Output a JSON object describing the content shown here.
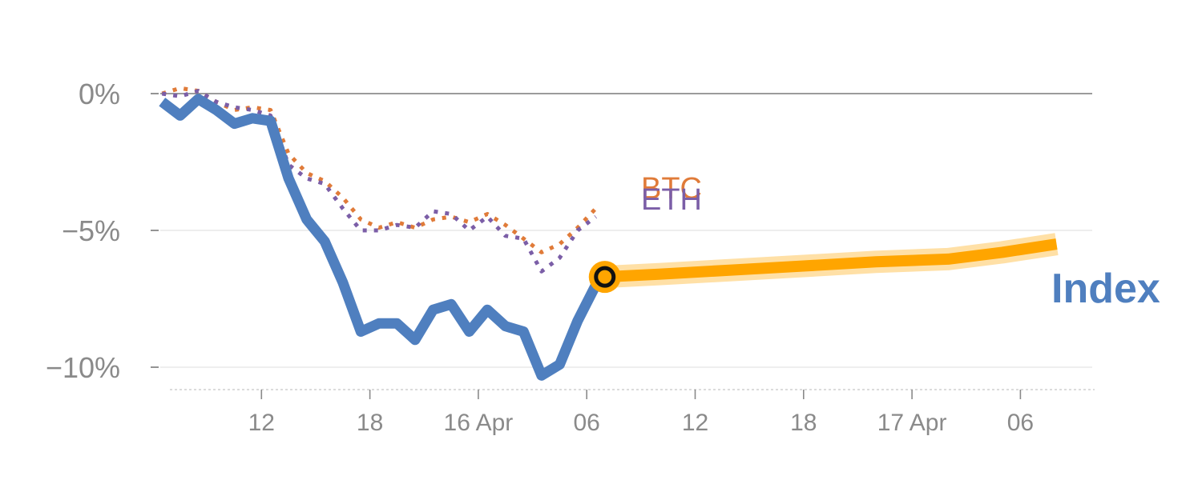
{
  "chart_data": {
    "type": "line",
    "ylim": [
      -11,
      1
    ],
    "y_ticks": [
      {
        "value": 0,
        "label": "0%"
      },
      {
        "value": -5,
        "label": "−5%"
      },
      {
        "value": -10,
        "label": "−10%"
      }
    ],
    "x_ticks": [
      {
        "hour": 12,
        "label": "12"
      },
      {
        "hour": 18,
        "label": "18"
      },
      {
        "hour": 24,
        "label": "16 Apr"
      },
      {
        "hour": 30,
        "label": "06"
      },
      {
        "hour": 36,
        "label": "12"
      },
      {
        "hour": 42,
        "label": "18"
      },
      {
        "hour": 48,
        "label": "17 Apr"
      },
      {
        "hour": 54,
        "label": "06"
      }
    ],
    "xlim": [
      6,
      57
    ],
    "series": [
      {
        "name": "BTC",
        "color": "#e07b39",
        "style": "dotted",
        "points": [
          [
            6.5,
            0.0
          ],
          [
            7.5,
            0.2
          ],
          [
            8.5,
            0.1
          ],
          [
            9.5,
            -0.3
          ],
          [
            10.5,
            -0.6
          ],
          [
            11.5,
            -0.5
          ],
          [
            12.5,
            -0.6
          ],
          [
            13.5,
            -2.2
          ],
          [
            14.5,
            -2.9
          ],
          [
            15.5,
            -3.2
          ],
          [
            16.5,
            -3.8
          ],
          [
            17.5,
            -4.6
          ],
          [
            18.5,
            -4.9
          ],
          [
            19.5,
            -4.7
          ],
          [
            20.5,
            -4.9
          ],
          [
            21.5,
            -4.6
          ],
          [
            22.5,
            -4.5
          ],
          [
            23.5,
            -4.7
          ],
          [
            24.5,
            -4.4
          ],
          [
            25.5,
            -4.8
          ],
          [
            26.5,
            -5.3
          ],
          [
            27.5,
            -5.8
          ],
          [
            28.5,
            -5.5
          ],
          [
            29.5,
            -4.9
          ],
          [
            30.5,
            -4.2
          ]
        ]
      },
      {
        "name": "ETH",
        "color": "#7b5ea7",
        "style": "dotted",
        "points": [
          [
            6.5,
            0.0
          ],
          [
            7.5,
            -0.1
          ],
          [
            8.5,
            0.1
          ],
          [
            9.5,
            -0.3
          ],
          [
            10.5,
            -0.5
          ],
          [
            11.5,
            -0.6
          ],
          [
            12.5,
            -0.8
          ],
          [
            13.5,
            -2.6
          ],
          [
            14.5,
            -3.1
          ],
          [
            15.5,
            -3.3
          ],
          [
            16.5,
            -4.2
          ],
          [
            17.5,
            -5.0
          ],
          [
            18.5,
            -5.0
          ],
          [
            19.5,
            -4.8
          ],
          [
            20.5,
            -4.9
          ],
          [
            21.5,
            -4.3
          ],
          [
            22.5,
            -4.4
          ],
          [
            23.5,
            -5.0
          ],
          [
            24.5,
            -4.5
          ],
          [
            25.5,
            -5.2
          ],
          [
            26.5,
            -5.3
          ],
          [
            27.5,
            -6.5
          ],
          [
            28.5,
            -6.0
          ],
          [
            29.5,
            -5.0
          ],
          [
            30.5,
            -4.5
          ]
        ]
      },
      {
        "name": "Index",
        "color": "#4f7fbf",
        "style": "solid",
        "points": [
          [
            6.5,
            -0.3
          ],
          [
            7.5,
            -0.8
          ],
          [
            8.5,
            -0.2
          ],
          [
            9.5,
            -0.6
          ],
          [
            10.5,
            -1.1
          ],
          [
            11.5,
            -0.9
          ],
          [
            12.5,
            -1.0
          ],
          [
            13.5,
            -3.1
          ],
          [
            14.5,
            -4.6
          ],
          [
            15.5,
            -5.4
          ],
          [
            16.5,
            -6.9
          ],
          [
            17.5,
            -8.7
          ],
          [
            18.5,
            -8.4
          ],
          [
            19.5,
            -8.4
          ],
          [
            20.5,
            -9.0
          ],
          [
            21.5,
            -7.9
          ],
          [
            22.5,
            -7.7
          ],
          [
            23.5,
            -8.7
          ],
          [
            24.5,
            -7.9
          ],
          [
            25.5,
            -8.5
          ],
          [
            26.5,
            -8.7
          ],
          [
            27.5,
            -10.3
          ],
          [
            28.5,
            -9.9
          ],
          [
            29.5,
            -8.3
          ],
          [
            30.5,
            -7.0
          ],
          [
            31,
            -6.7
          ]
        ]
      }
    ],
    "forecast": {
      "color": "#ffa500",
      "points": [
        [
          31,
          -6.7
        ],
        [
          34,
          -6.6
        ],
        [
          38,
          -6.45
        ],
        [
          42,
          -6.3
        ],
        [
          46,
          -6.15
        ],
        [
          50,
          -6.05
        ],
        [
          53,
          -5.8
        ],
        [
          56,
          -5.5
        ]
      ]
    },
    "marker_point": [
      31,
      -6.7
    ],
    "labels": {
      "btc": "BTC",
      "eth": "ETH",
      "index": "Index"
    }
  }
}
